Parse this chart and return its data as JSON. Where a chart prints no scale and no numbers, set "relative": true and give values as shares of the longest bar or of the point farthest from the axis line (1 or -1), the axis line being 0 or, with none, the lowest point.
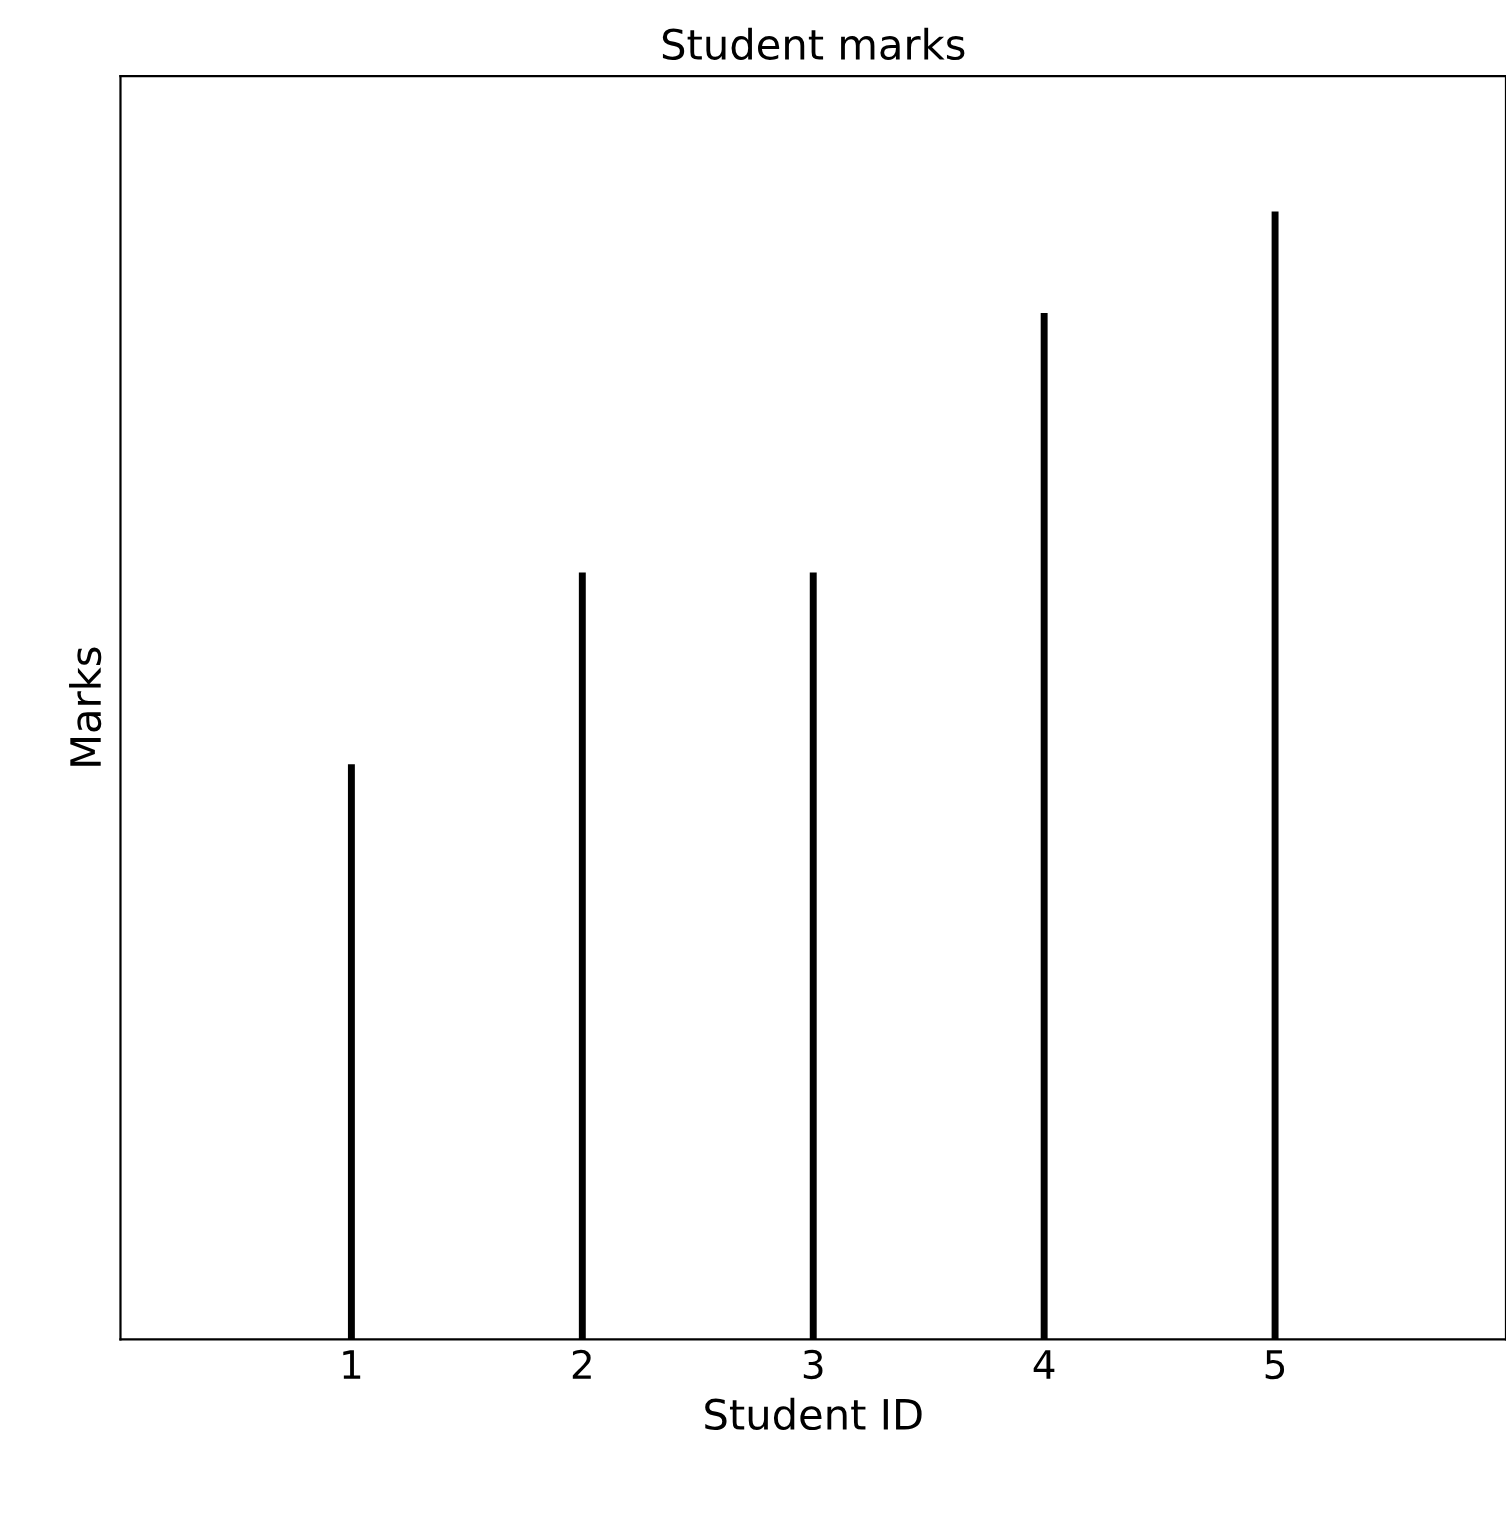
{
  "chart_data": {
    "type": "bar",
    "title": "Student marks",
    "xlabel": "Student ID",
    "ylabel": "Marks",
    "categories": [
      "1",
      "2",
      "3",
      "4",
      "5"
    ],
    "values": [
      0.51,
      0.68,
      0.68,
      0.91,
      1.0
    ],
    "color": "#000000",
    "relative": true,
    "grid": false,
    "legend": false
  }
}
